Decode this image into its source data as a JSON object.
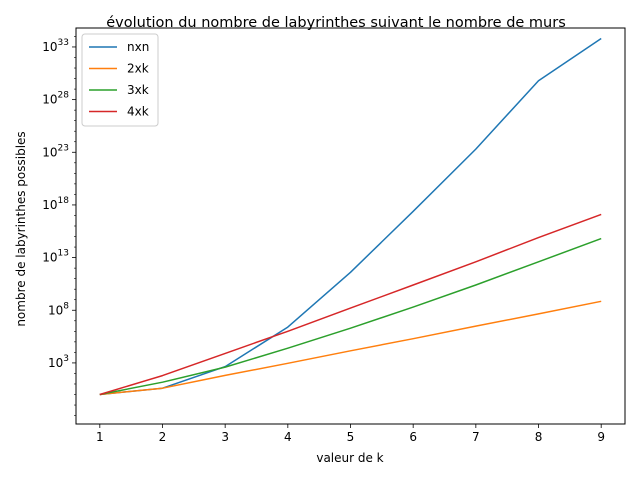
{
  "chart_data": {
    "type": "line",
    "title": "évolution du nombre de labyrinthes suivant le nombre de murs",
    "xlabel": "valeur de k",
    "ylabel": "nombre de labyrinthes possibles",
    "x": [
      1,
      2,
      3,
      4,
      5,
      6,
      7,
      8,
      9
    ],
    "xticks": [
      "1",
      "2",
      "3",
      "4",
      "5",
      "6",
      "7",
      "8",
      "9"
    ],
    "yscale": "log",
    "ylim_exp": [
      -2.8,
      34.8
    ],
    "yticks": [
      {
        "exp": 3,
        "base": "10",
        "power": "3"
      },
      {
        "exp": 8,
        "base": "10",
        "power": "8"
      },
      {
        "exp": 13,
        "base": "10",
        "power": "13"
      },
      {
        "exp": 18,
        "base": "10",
        "power": "18"
      },
      {
        "exp": 23,
        "base": "10",
        "power": "23"
      },
      {
        "exp": 28,
        "base": "10",
        "power": "28"
      },
      {
        "exp": 33,
        "base": "10",
        "power": "33"
      }
    ],
    "legend_position": "top-left",
    "series": [
      {
        "name": "nxn",
        "color": "#1f77b4",
        "log10_values": [
          0,
          0.6,
          2.65,
          6.4,
          11.6,
          17.4,
          23.3,
          29.8,
          33.8
        ]
      },
      {
        "name": "2xk",
        "color": "#ff7f0e",
        "log10_values": [
          0,
          0.6,
          1.81,
          2.96,
          4.15,
          5.3,
          6.5,
          7.65,
          8.85
        ]
      },
      {
        "name": "3xk",
        "color": "#2ca02c",
        "log10_values": [
          0,
          1.17,
          2.6,
          4.4,
          6.3,
          8.3,
          10.4,
          12.6,
          14.8
        ]
      },
      {
        "name": "4xk",
        "color": "#d62728",
        "log10_values": [
          0,
          1.8,
          3.9,
          6.0,
          8.2,
          10.4,
          12.6,
          14.9,
          17.1
        ]
      }
    ]
  }
}
